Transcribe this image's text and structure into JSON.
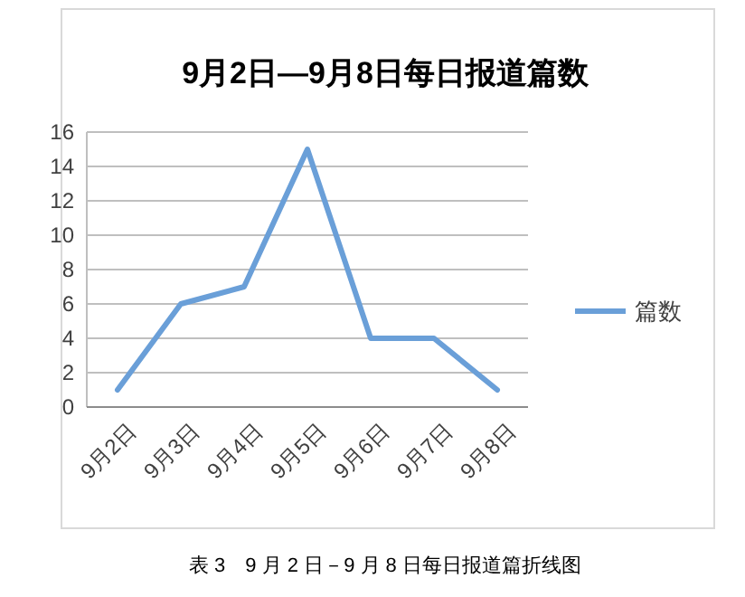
{
  "chart_data": {
    "type": "line",
    "title": "9月2日—9月8日每日报道篇数",
    "categories": [
      "9月2日",
      "9月3日",
      "9月4日",
      "9月5日",
      "9月6日",
      "9月7日",
      "9月8日"
    ],
    "series": [
      {
        "name": "篇数",
        "color": "#6a9fd8",
        "values": [
          1,
          6,
          7,
          15,
          4,
          4,
          1
        ]
      }
    ],
    "ylim": [
      0,
      16
    ],
    "yticks": [
      0,
      2,
      4,
      6,
      8,
      10,
      12,
      14,
      16
    ],
    "grid": "y",
    "legend": "right",
    "marker": "none",
    "line_style": "solid",
    "annotations": [
      "表 3　9 月 2 日－9 月 8 日每日报道篇折线图"
    ]
  }
}
